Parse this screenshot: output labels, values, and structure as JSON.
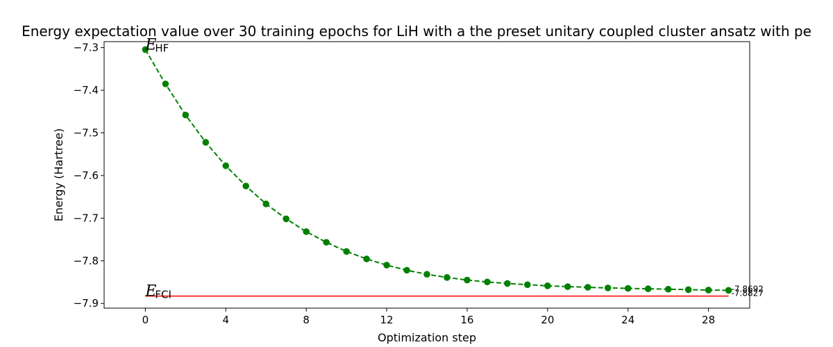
{
  "chart_data": {
    "type": "line",
    "title": "Energy expectation value over 30 training epochs for LiH with a the preset unitary coupled cluster ansatz with pe",
    "xlabel": "Optimization step",
    "ylabel": "Energy (Hartree)",
    "xlim": [
      -2.05,
      30.05
    ],
    "ylim": [
      -7.911,
      -7.286
    ],
    "xticks": [
      0,
      4,
      8,
      12,
      16,
      20,
      24,
      28
    ],
    "yticks": [
      -7.3,
      -7.4,
      -7.5,
      -7.6,
      -7.7,
      -7.8,
      -7.9
    ],
    "xtick_labels": [
      "0",
      "4",
      "8",
      "12",
      "16",
      "20",
      "24",
      "28"
    ],
    "ytick_labels": [
      "−7.3",
      "−7.4",
      "−7.5",
      "−7.6",
      "−7.7",
      "−7.8",
      "−7.9"
    ],
    "grid": false,
    "series": [
      {
        "style": "dashed line with circle markers",
        "color": "#008000",
        "x": [
          0,
          1,
          2,
          3,
          4,
          5,
          6,
          7,
          8,
          9,
          10,
          11,
          12,
          13,
          14,
          15,
          16,
          17,
          18,
          19,
          20,
          21,
          22,
          23,
          24,
          25,
          26,
          27,
          28,
          29
        ],
        "y": [
          -7.3046,
          -7.3851,
          -7.4581,
          -7.5221,
          -7.5771,
          -7.6246,
          -7.6666,
          -7.7016,
          -7.7316,
          -7.7566,
          -7.7781,
          -7.7956,
          -7.8101,
          -7.8221,
          -7.8316,
          -7.8391,
          -7.8451,
          -7.8496,
          -7.8531,
          -7.8561,
          -7.8586,
          -7.8606,
          -7.8621,
          -7.8636,
          -7.8646,
          -7.8656,
          -7.8666,
          -7.8676,
          -7.8686,
          -7.8692
        ]
      }
    ],
    "reference_lines": [
      {
        "color": "#ff0000",
        "y": -7.8827,
        "x_start": 0,
        "x_end": 29
      }
    ],
    "annotations": [
      {
        "symbol": "E",
        "subscript": "HF",
        "x": 0,
        "y": -7.3046
      },
      {
        "symbol": "E",
        "subscript": "FCI",
        "x": 0,
        "y": -7.8827
      }
    ],
    "end_labels": [
      {
        "text": "-7.8692",
        "x": 29,
        "y": -7.8692
      },
      {
        "text": "-7.8827",
        "x": 29,
        "y": -7.8827
      }
    ]
  }
}
